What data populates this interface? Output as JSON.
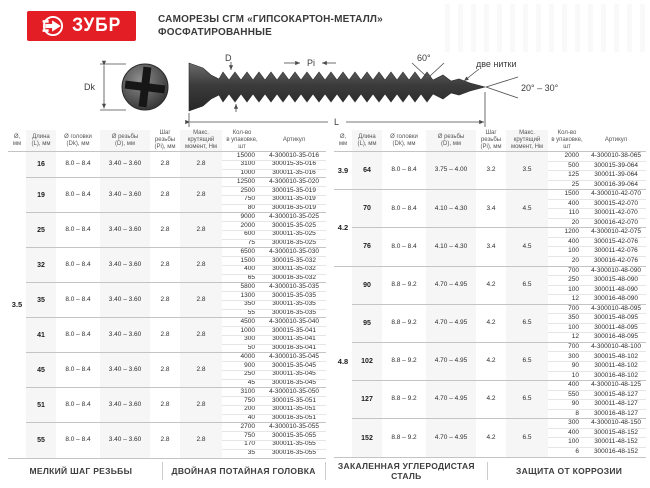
{
  "header": {
    "logo_text": "ЗУБР",
    "title_line1": "САМОРЕЗЫ СГМ «ГИПСОКАРТОН-МЕТАЛЛ»",
    "title_line2": "ФОСФАТИРОВАННЫЕ"
  },
  "diagram": {
    "dk_label": "Dk",
    "d_label": "D",
    "pi_label": "Pi",
    "l_label": "L",
    "angle_60": "60°",
    "two_threads": "две нитки",
    "angle_range": "20° – 30°"
  },
  "table_headers": [
    {
      "l1": "Ø,",
      "l2": "мм"
    },
    {
      "l1": "Длина",
      "l2": "(L), мм"
    },
    {
      "l1": "Ø головки",
      "l2": "(Dk), мм"
    },
    {
      "l1": "Ø резьбы",
      "l2": "(D), мм"
    },
    {
      "l1": "Шаг резьбы",
      "l2": "(Pi), мм"
    },
    {
      "l1": "Макс. крутящий",
      "l2": "момент, Нм"
    },
    {
      "l1": "Кол-во",
      "l2": "в упаковке, шт"
    },
    {
      "l1": "Артикул",
      "l2": ""
    }
  ],
  "left_table": {
    "diameters": [
      {
        "diameter": "3.5",
        "groups": [
          {
            "length": "16",
            "head_dia": "8.0 – 8.4",
            "thread_dia": "3.40 – 3.60",
            "pitch": "2.8",
            "torque": "2.8",
            "packs": [
              [
                "15000",
                "4-300010-35-016"
              ],
              [
                "3100",
                "300015-35-016"
              ],
              [
                "1000",
                "300011-35-016"
              ]
            ]
          },
          {
            "length": "19",
            "head_dia": "8.0 – 8.4",
            "thread_dia": "3.40 – 3.60",
            "pitch": "2.8",
            "torque": "2.8",
            "packs": [
              [
                "12500",
                "4-300010-35-020"
              ],
              [
                "2500",
                "300015-35-019"
              ],
              [
                "750",
                "300011-35-019"
              ],
              [
                "80",
                "300016-35-019"
              ]
            ]
          },
          {
            "length": "25",
            "head_dia": "8.0 – 8.4",
            "thread_dia": "3.40 – 3.60",
            "pitch": "2.8",
            "torque": "2.8",
            "packs": [
              [
                "9000",
                "4-300010-35-025"
              ],
              [
                "2000",
                "300015-35-025"
              ],
              [
                "600",
                "300011-35-025"
              ],
              [
                "75",
                "300016-35-025"
              ]
            ]
          },
          {
            "length": "32",
            "head_dia": "8.0 – 8.4",
            "thread_dia": "3.40 – 3.60",
            "pitch": "2.8",
            "torque": "2.8",
            "packs": [
              [
                "6500",
                "4-300010-35-030"
              ],
              [
                "1500",
                "300015-35-032"
              ],
              [
                "400",
                "300011-35-032"
              ],
              [
                "65",
                "300016-35-032"
              ]
            ]
          },
          {
            "length": "35",
            "head_dia": "8.0 – 8.4",
            "thread_dia": "3.40 – 3.60",
            "pitch": "2.8",
            "torque": "2.8",
            "packs": [
              [
                "5800",
                "4-300010-35-035"
              ],
              [
                "1300",
                "300015-35-035"
              ],
              [
                "350",
                "300011-35-035"
              ],
              [
                "55",
                "300016-35-035"
              ]
            ]
          },
          {
            "length": "41",
            "head_dia": "8.0 – 8.4",
            "thread_dia": "3.40 – 3.60",
            "pitch": "2.8",
            "torque": "2.8",
            "packs": [
              [
                "4500",
                "4-300010-35-040"
              ],
              [
                "1000",
                "300015-35-041"
              ],
              [
                "300",
                "300011-35-041"
              ],
              [
                "50",
                "300016-35-041"
              ]
            ]
          },
          {
            "length": "45",
            "head_dia": "8.0 – 8.4",
            "thread_dia": "3.40 – 3.60",
            "pitch": "2.8",
            "torque": "2.8",
            "packs": [
              [
                "4000",
                "4-300010-35-045"
              ],
              [
                "900",
                "300015-35-045"
              ],
              [
                "250",
                "300011-35-045"
              ],
              [
                "45",
                "300016-35-045"
              ]
            ]
          },
          {
            "length": "51",
            "head_dia": "8.0 – 8.4",
            "thread_dia": "3.40 – 3.60",
            "pitch": "2.8",
            "torque": "2.8",
            "packs": [
              [
                "3100",
                "4-300010-35-050"
              ],
              [
                "750",
                "300015-35-051"
              ],
              [
                "200",
                "300011-35-051"
              ],
              [
                "40",
                "300016-35-051"
              ]
            ]
          },
          {
            "length": "55",
            "head_dia": "8.0 – 8.4",
            "thread_dia": "3.40 – 3.60",
            "pitch": "2.8",
            "torque": "2.8",
            "packs": [
              [
                "2700",
                "4-300010-35-055"
              ],
              [
                "750",
                "300015-35-055"
              ],
              [
                "170",
                "300011-35-055"
              ],
              [
                "35",
                "300016-35-055"
              ]
            ]
          }
        ]
      }
    ]
  },
  "right_table": {
    "diameters": [
      {
        "diameter": "3.9",
        "groups": [
          {
            "length": "64",
            "head_dia": "8.0 – 8.4",
            "thread_dia": "3.75 – 4.00",
            "pitch": "3.2",
            "torque": "3.5",
            "packs": [
              [
                "2000",
                "4-300010-38-065"
              ],
              [
                "500",
                "300015-39-064"
              ],
              [
                "125",
                "300011-39-064"
              ],
              [
                "25",
                "300016-39-064"
              ]
            ]
          }
        ]
      },
      {
        "diameter": "4.2",
        "groups": [
          {
            "length": "70",
            "head_dia": "8.0 – 8.4",
            "thread_dia": "4.10 – 4.30",
            "pitch": "3.4",
            "torque": "4.5",
            "packs": [
              [
                "1500",
                "4-300010-42-070"
              ],
              [
                "400",
                "300015-42-070"
              ],
              [
                "110",
                "300011-42-070"
              ],
              [
                "20",
                "300016-42-070"
              ]
            ]
          },
          {
            "length": "76",
            "head_dia": "8.0 – 8.4",
            "thread_dia": "4.10 – 4.30",
            "pitch": "3.4",
            "torque": "4.5",
            "packs": [
              [
                "1200",
                "4-300010-42-075"
              ],
              [
                "400",
                "300015-42-076"
              ],
              [
                "100",
                "300011-42-076"
              ],
              [
                "20",
                "300016-42-076"
              ]
            ]
          }
        ]
      },
      {
        "diameter": "4.8",
        "groups": [
          {
            "length": "90",
            "head_dia": "8.8 – 9.2",
            "thread_dia": "4.70 – 4.95",
            "pitch": "4.2",
            "torque": "6.5",
            "packs": [
              [
                "700",
                "4-300010-48-090"
              ],
              [
                "250",
                "300015-48-090"
              ],
              [
                "100",
                "300011-48-090"
              ],
              [
                "12",
                "300016-48-090"
              ]
            ]
          },
          {
            "length": "95",
            "head_dia": "8.8 – 9.2",
            "thread_dia": "4.70 – 4.95",
            "pitch": "4.2",
            "torque": "6.5",
            "packs": [
              [
                "700",
                "4-300010-48-095"
              ],
              [
                "350",
                "300015-48-095"
              ],
              [
                "100",
                "300011-48-095"
              ],
              [
                "12",
                "300016-48-095"
              ]
            ]
          },
          {
            "length": "102",
            "head_dia": "8.8 – 9.2",
            "thread_dia": "4.70 – 4.95",
            "pitch": "4.2",
            "torque": "6.5",
            "packs": [
              [
                "700",
                "4-300010-48-100"
              ],
              [
                "300",
                "300015-48-102"
              ],
              [
                "90",
                "300011-48-102"
              ],
              [
                "10",
                "300016-48-102"
              ]
            ]
          },
          {
            "length": "127",
            "head_dia": "8.8 – 9.2",
            "thread_dia": "4.70 – 4.95",
            "pitch": "4.2",
            "torque": "6.5",
            "packs": [
              [
                "400",
                "4-300010-48-125"
              ],
              [
                "550",
                "300015-48-127"
              ],
              [
                "90",
                "300011-48-127"
              ],
              [
                "8",
                "300016-48-127"
              ]
            ]
          },
          {
            "length": "152",
            "head_dia": "8.8 – 9.2",
            "thread_dia": "4.70 – 4.95",
            "pitch": "4.2",
            "torque": "6.5",
            "packs": [
              [
                "300",
                "4-300010-48-150"
              ],
              [
                "400",
                "300015-48-152"
              ],
              [
                "100",
                "300011-48-152"
              ],
              [
                "6",
                "300016-48-152"
              ]
            ]
          }
        ]
      }
    ]
  },
  "footer": {
    "items": [
      "МЕЛКИЙ ШАГ РЕЗЬБЫ",
      "ДВОЙНАЯ ПОТАЙНАЯ ГОЛОВКА",
      "ЗАКАЛЕННАЯ УГЛЕРОДИСТАЯ СТАЛЬ",
      "ЗАЩИТА ОТ КОРРОЗИИ"
    ]
  },
  "colors": {
    "brand_red": "#e31e24",
    "text_dark": "#3a3a3a",
    "table_text": "#2d2d2d",
    "group_line": "#c4c4c4",
    "sub_line": "#e6e6e6",
    "column_stripe": "#f6f6f6",
    "screw_dark": "#3c3c3c"
  }
}
